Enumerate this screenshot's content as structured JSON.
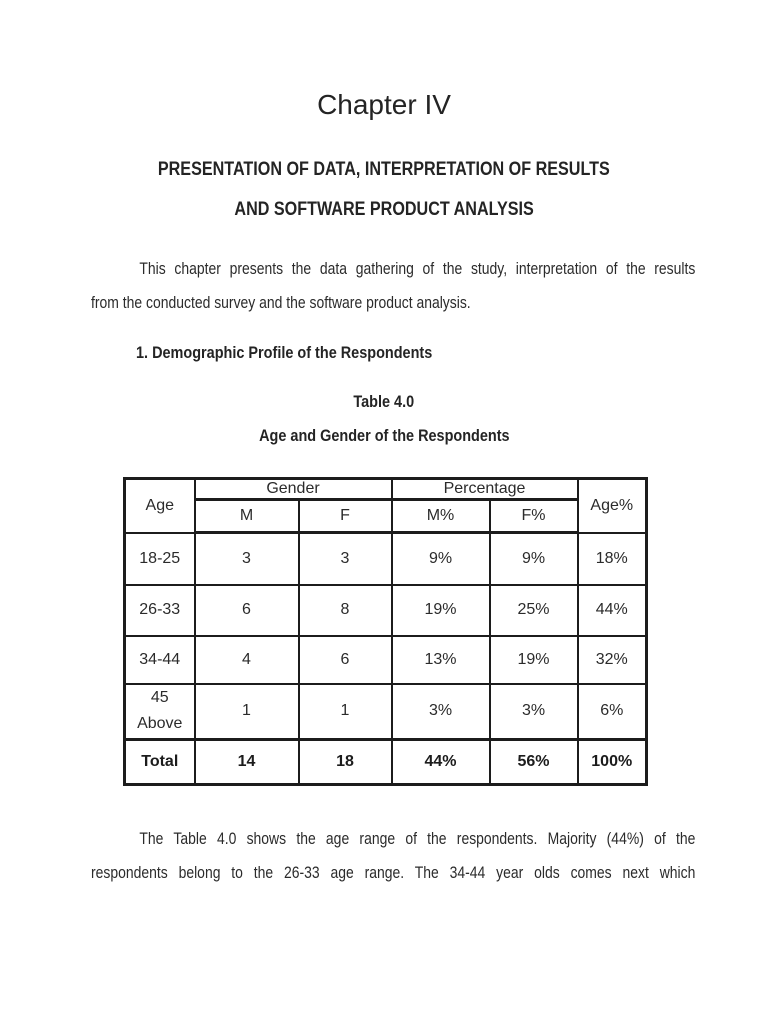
{
  "doc": {
    "chapter_title": "Chapter IV",
    "heading_line1": "PRESENTATION OF DATA, INTERPRETATION OF RESULTS",
    "heading_line2": "AND SOFTWARE PRODUCT ANALYSIS",
    "intro": {
      "lines": [
        "This chapter presents the data gathering of the study, interpretation of the results",
        "from the conducted survey and the software product analysis."
      ]
    },
    "section_heading": "1. Demographic Profile of the Respondents",
    "table_caption": "Table 4.0",
    "table_subcaption": "Age and Gender of the Respondents",
    "closing": {
      "lines": [
        "The Table 4.0 shows the age range of the respondents. Majority (44%) of the",
        "respondents belong to the 26-33 age range. The 34-44 year olds comes next which"
      ]
    }
  },
  "table": {
    "group_headers": {
      "age": "Age",
      "gender": "Gender",
      "percentage": "Percentage",
      "age_pct": "Age%"
    },
    "sub_headers": {
      "m": "M",
      "f": "F",
      "m_pct": "M%",
      "f_pct": "F%"
    },
    "rows": [
      {
        "age": "18-25",
        "m": "3",
        "f": "3",
        "m_pct": "9%",
        "f_pct": "9%",
        "age_pct": "18%"
      },
      {
        "age": "26-33",
        "m": "6",
        "f": "8",
        "m_pct": "19%",
        "f_pct": "25%",
        "age_pct": "44%"
      },
      {
        "age": "34-44",
        "m": "4",
        "f": "6",
        "m_pct": "13%",
        "f_pct": "19%",
        "age_pct": "32%"
      },
      {
        "age_line1": "45",
        "age_line2": "Above",
        "m": "1",
        "f": "1",
        "m_pct": "3%",
        "f_pct": "3%",
        "age_pct": "6%"
      }
    ],
    "total_row": {
      "label": "Total",
      "m": "14",
      "f": "18",
      "m_pct": "44%",
      "f_pct": "56%",
      "age_pct": "100%"
    }
  },
  "colors": {
    "page_background": "#ffffff",
    "text": "#2b2b2b",
    "heading_text": "#242424",
    "table_border": "#1c1c1c"
  }
}
